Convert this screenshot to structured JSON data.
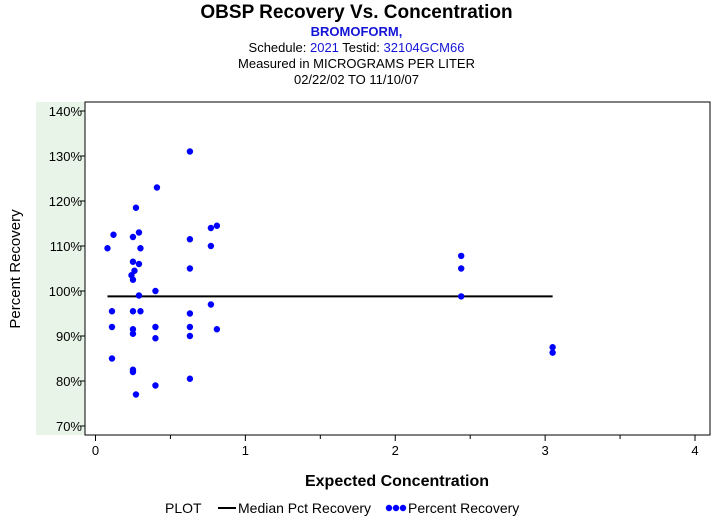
{
  "header": {
    "title": "OBSP Recovery Vs. Concentration",
    "subtitle": "BROMOFORM,",
    "schedule_label": "Schedule:",
    "schedule_value": "2021",
    "testid_label": "Testid:",
    "testid_value": "32104GCM66",
    "measured": "Measured in  MICROGRAMS PER LITER",
    "date_range": "02/22/02 TO 11/10/07"
  },
  "legend": {
    "title": "PLOT",
    "median_label": "Median Pct Recovery",
    "recovery_label": "Percent Recovery"
  },
  "colors": {
    "points": "#0000ff",
    "median_line": "#000000",
    "tick_band": "#e8f4e8"
  },
  "chart_data": {
    "type": "scatter",
    "xlabel": "Expected Concentration",
    "ylabel": "Percent Recovery",
    "xlim": [
      -0.07,
      4.1
    ],
    "ylim": [
      68,
      142
    ],
    "x_ticks": [
      0,
      1,
      2,
      3,
      4
    ],
    "x_tick_labels": [
      "0",
      "1",
      "2",
      "3",
      "4"
    ],
    "y_ticks": [
      70,
      80,
      90,
      100,
      110,
      120,
      130,
      140
    ],
    "y_tick_labels": [
      "70%",
      "80%",
      "90%",
      "100%",
      "110%",
      "120%",
      "130%",
      "140%"
    ],
    "grid": false,
    "series": [
      {
        "name": "Median Pct Recovery",
        "kind": "line",
        "x": [
          0.08,
          3.05
        ],
        "y": [
          98.8,
          98.8
        ]
      },
      {
        "name": "Percent Recovery",
        "kind": "scatter",
        "points": [
          [
            0.08,
            109.5
          ],
          [
            0.12,
            112.5
          ],
          [
            0.11,
            95.5
          ],
          [
            0.11,
            92.0
          ],
          [
            0.11,
            85.0
          ],
          [
            0.25,
            112.0
          ],
          [
            0.27,
            118.5
          ],
          [
            0.29,
            113.0
          ],
          [
            0.25,
            106.5
          ],
          [
            0.29,
            106.0
          ],
          [
            0.26,
            104.5
          ],
          [
            0.24,
            103.5
          ],
          [
            0.25,
            102.5
          ],
          [
            0.3,
            109.5
          ],
          [
            0.29,
            99.0
          ],
          [
            0.25,
            95.5
          ],
          [
            0.3,
            95.5
          ],
          [
            0.25,
            91.5
          ],
          [
            0.25,
            90.5
          ],
          [
            0.25,
            82.5
          ],
          [
            0.25,
            82.0
          ],
          [
            0.27,
            77.0
          ],
          [
            0.41,
            123.0
          ],
          [
            0.4,
            100.0
          ],
          [
            0.4,
            92.0
          ],
          [
            0.4,
            89.5
          ],
          [
            0.4,
            79.0
          ],
          [
            0.63,
            131.0
          ],
          [
            0.63,
            111.5
          ],
          [
            0.63,
            105.0
          ],
          [
            0.63,
            95.0
          ],
          [
            0.63,
            92.0
          ],
          [
            0.63,
            90.0
          ],
          [
            0.63,
            80.5
          ],
          [
            0.77,
            114.0
          ],
          [
            0.81,
            114.5
          ],
          [
            0.77,
            110.0
          ],
          [
            0.77,
            97.0
          ],
          [
            0.81,
            91.5
          ],
          [
            2.44,
            107.8
          ],
          [
            2.44,
            105.0
          ],
          [
            2.44,
            98.8
          ],
          [
            3.05,
            87.5
          ],
          [
            3.05,
            86.3
          ]
        ]
      }
    ]
  }
}
